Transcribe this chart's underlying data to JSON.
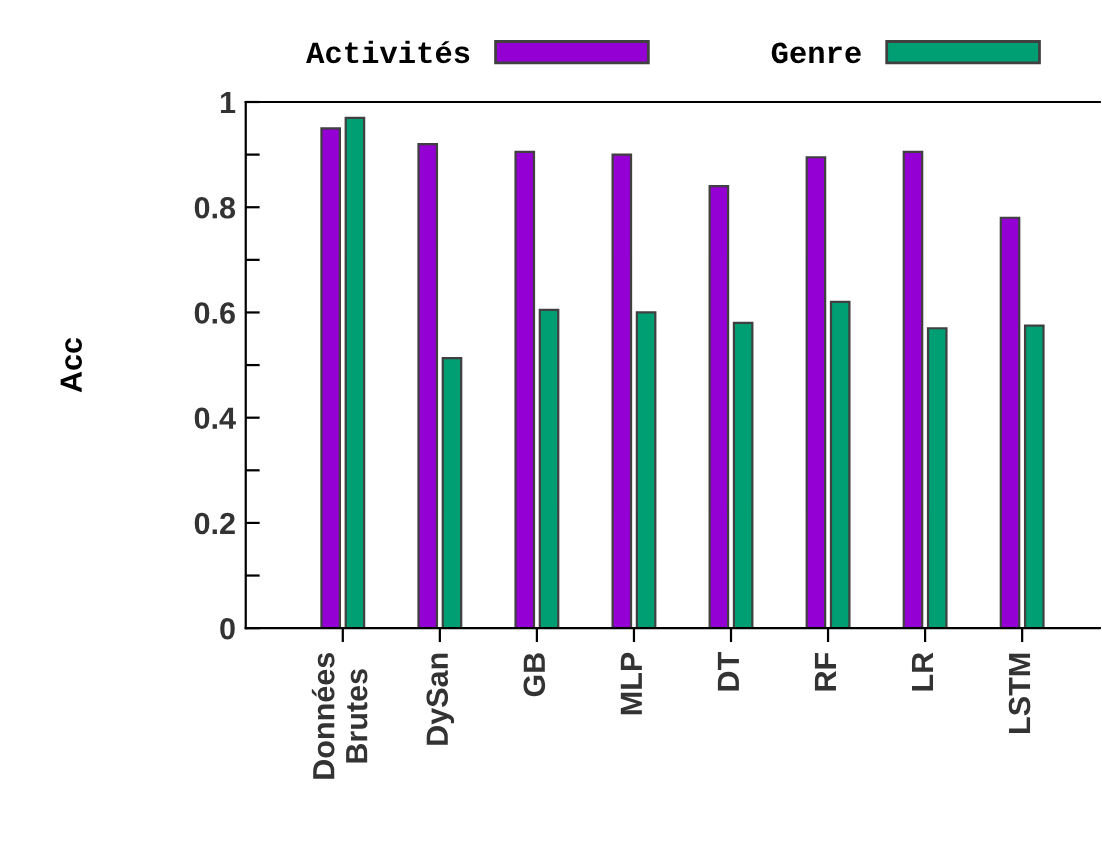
{
  "chart_data": {
    "type": "bar",
    "ylabel": "Acc",
    "categories": [
      "Données\nBrutes",
      "DySan",
      "GB",
      "MLP",
      "DT",
      "RF",
      "LR",
      "LSTM"
    ],
    "series": [
      {
        "name": "Activités",
        "color": "#9400d3",
        "values": [
          0.95,
          0.92,
          0.905,
          0.9,
          0.84,
          0.895,
          0.905,
          0.78
        ]
      },
      {
        "name": "Genre",
        "color": "#009e73",
        "values": [
          0.97,
          0.513,
          0.605,
          0.6,
          0.58,
          0.62,
          0.57,
          0.575
        ]
      }
    ],
    "ylim": [
      0,
      1
    ],
    "yticks": [
      0,
      {
        "value": 0.1,
        "label": null
      },
      0.2,
      {
        "value": 0.3,
        "label": null
      },
      0.4,
      {
        "value": 0.5,
        "label": null
      },
      0.6,
      {
        "value": 0.7,
        "label": null
      },
      0.8,
      {
        "value": 0.9,
        "label": null
      },
      1
    ],
    "legend": "top",
    "grid": false
  }
}
